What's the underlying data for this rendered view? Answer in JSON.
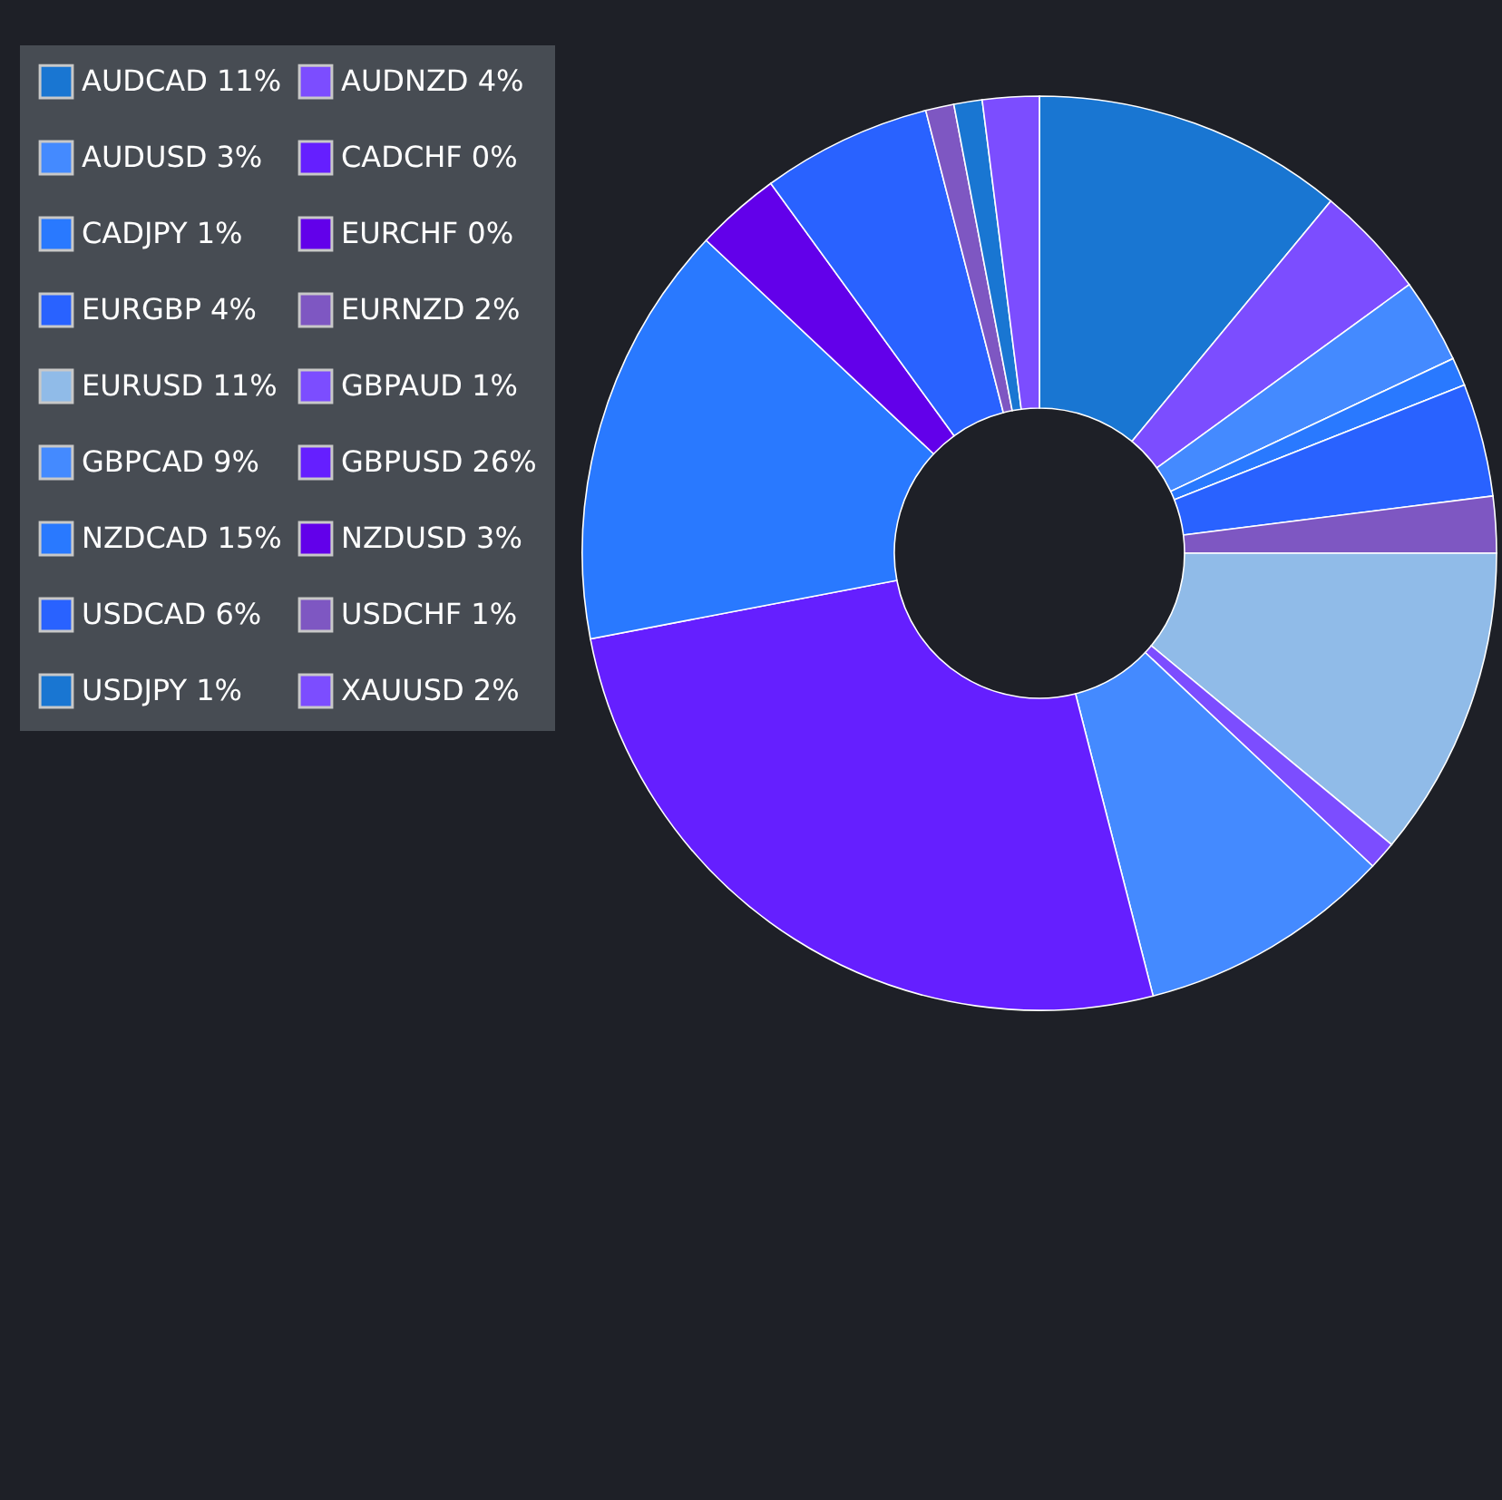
{
  "chart_data": {
    "type": "donut",
    "categories": [
      "AUDCAD 11%",
      "AUDNZD 4%",
      "AUDUSD 3%",
      "CADCHF 0%",
      "CADJPY 1%",
      "EURCHF 0%",
      "EURGBP 4%",
      "EURNZD 2%",
      "EURUSD 11%",
      "GBPAUD 1%",
      "GBPCAD 9%",
      "GBPUSD 26%",
      "NZDCAD 15%",
      "NZDUSD 3%",
      "USDCAD 6%",
      "USDCHF 1%",
      "USDJPY 1%",
      "XAUUSD 2%"
    ],
    "values": [
      11,
      4,
      3,
      0,
      1,
      0,
      4,
      2,
      11,
      1,
      9,
      26,
      15,
      3,
      6,
      1,
      1,
      2
    ],
    "colors": [
      "#1976d2",
      "#7c4dff",
      "#448aff",
      "#651fff",
      "#2979ff",
      "#6200ea",
      "#2962ff",
      "#7e57c2",
      "#90bbe8",
      "#7c4dff",
      "#448aff",
      "#651fff",
      "#2979ff",
      "#6200ea",
      "#2962ff",
      "#7e57c2",
      "#1976d2",
      "#7c4dff"
    ],
    "legend": "left"
  }
}
